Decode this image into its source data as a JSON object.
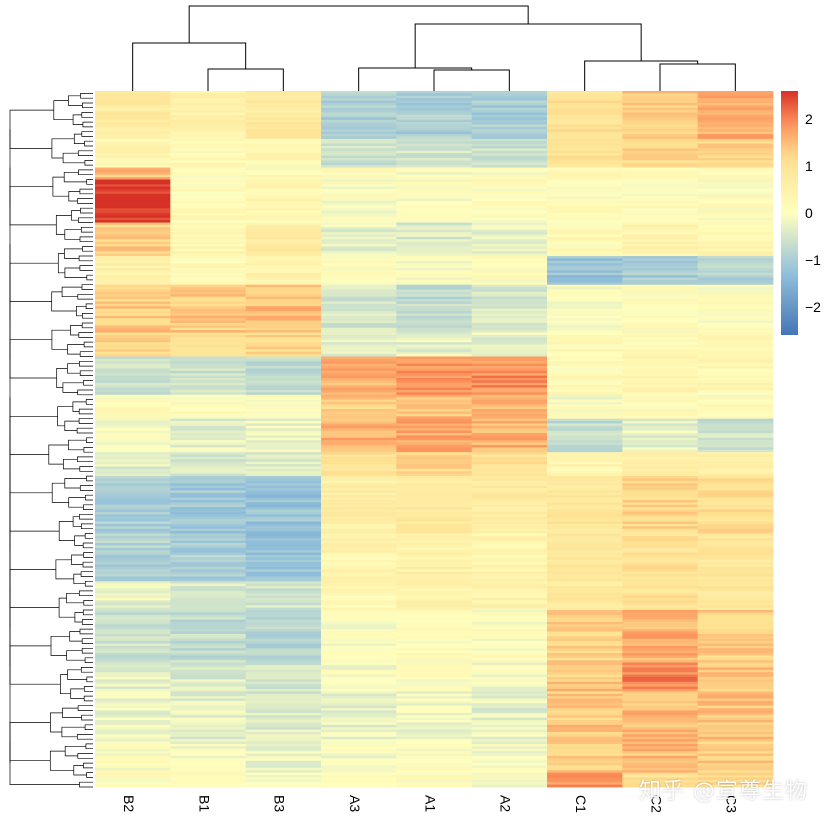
{
  "chart_data": {
    "type": "heatmap",
    "columns": [
      "B2",
      "B1",
      "B3",
      "A3",
      "A1",
      "A2",
      "C1",
      "C2",
      "C3"
    ],
    "legend": {
      "ticks": [
        2,
        1,
        0,
        -1,
        -2
      ],
      "tick_labels": [
        "2",
        "1",
        "0",
        "−1",
        "−2"
      ],
      "range": [
        -2.6,
        2.6
      ],
      "placement": "right"
    },
    "colors": {
      "low": "#4575b4",
      "mid": "#ffffbf",
      "high": "#d73027"
    },
    "row_blocks": [
      {
        "rows": 20,
        "values": [
          0.7,
          0.5,
          0.8,
          -1.0,
          -1.0,
          -1.0,
          1.1,
          1.4,
          1.6
        ]
      },
      {
        "rows": 12,
        "values": [
          0.3,
          0.2,
          0.3,
          -0.6,
          -0.5,
          -0.6,
          1.0,
          1.2,
          1.2
        ]
      },
      {
        "rows": 5,
        "values": [
          1.5,
          0.1,
          0.1,
          0.1,
          0.0,
          0.0,
          0.2,
          0.2,
          0.1
        ]
      },
      {
        "rows": 18,
        "values": [
          2.6,
          0.2,
          0.3,
          0.0,
          0.0,
          0.1,
          0.1,
          0.1,
          0.1
        ]
      },
      {
        "rows": 14,
        "values": [
          1.3,
          0.3,
          0.7,
          -0.3,
          -0.4,
          -0.3,
          0.2,
          0.4,
          0.3
        ]
      },
      {
        "rows": 12,
        "values": [
          0.5,
          0.2,
          0.4,
          0.1,
          0.0,
          0.1,
          -1.2,
          -1.0,
          -0.9
        ]
      },
      {
        "rows": 20,
        "values": [
          1.4,
          1.4,
          1.5,
          -0.5,
          -0.7,
          -0.5,
          0.0,
          0.1,
          0.1
        ]
      },
      {
        "rows": 10,
        "values": [
          1.2,
          1.0,
          1.2,
          -0.3,
          -0.3,
          -0.3,
          0.2,
          0.2,
          0.2
        ]
      },
      {
        "rows": 16,
        "values": [
          -0.6,
          -0.6,
          -0.7,
          1.6,
          1.8,
          1.9,
          0.2,
          0.3,
          0.3
        ]
      },
      {
        "rows": 10,
        "values": [
          0.1,
          0.1,
          0.1,
          1.4,
          1.5,
          1.5,
          0.0,
          0.2,
          0.1
        ]
      },
      {
        "rows": 14,
        "values": [
          0.0,
          -0.3,
          -0.2,
          1.6,
          1.7,
          1.6,
          -0.7,
          -0.3,
          -0.6
        ]
      },
      {
        "rows": 10,
        "values": [
          -0.3,
          -0.4,
          -0.4,
          1.0,
          1.2,
          1.1,
          0.3,
          0.5,
          0.5
        ]
      },
      {
        "rows": 24,
        "values": [
          -1.0,
          -1.1,
          -1.2,
          0.6,
          0.8,
          0.7,
          0.9,
          1.2,
          1.1
        ]
      },
      {
        "rows": 20,
        "values": [
          -0.9,
          -1.0,
          -1.2,
          0.4,
          0.5,
          0.4,
          0.8,
          1.0,
          0.9
        ]
      },
      {
        "rows": 12,
        "values": [
          -0.3,
          -0.4,
          -0.5,
          0.3,
          0.4,
          0.4,
          0.8,
          1.0,
          0.9
        ]
      },
      {
        "rows": 22,
        "values": [
          -0.6,
          -0.7,
          -0.8,
          0.0,
          0.1,
          0.0,
          1.3,
          1.6,
          1.3
        ]
      },
      {
        "rows": 12,
        "values": [
          -0.3,
          -0.4,
          -0.5,
          -0.1,
          0.0,
          -0.1,
          1.4,
          2.0,
          1.4
        ]
      },
      {
        "rows": 22,
        "values": [
          -0.2,
          -0.3,
          -0.4,
          -0.3,
          -0.2,
          -0.3,
          1.4,
          1.5,
          1.4
        ]
      },
      {
        "rows": 12,
        "values": [
          0.0,
          -0.1,
          -0.2,
          -0.1,
          0.0,
          -0.1,
          1.3,
          1.5,
          1.4
        ]
      },
      {
        "rows": 6,
        "values": [
          0.1,
          0.1,
          0.0,
          0.1,
          0.1,
          0.0,
          1.8,
          1.0,
          1.1
        ]
      }
    ]
  },
  "watermark": "知乎 @宣尊生物"
}
